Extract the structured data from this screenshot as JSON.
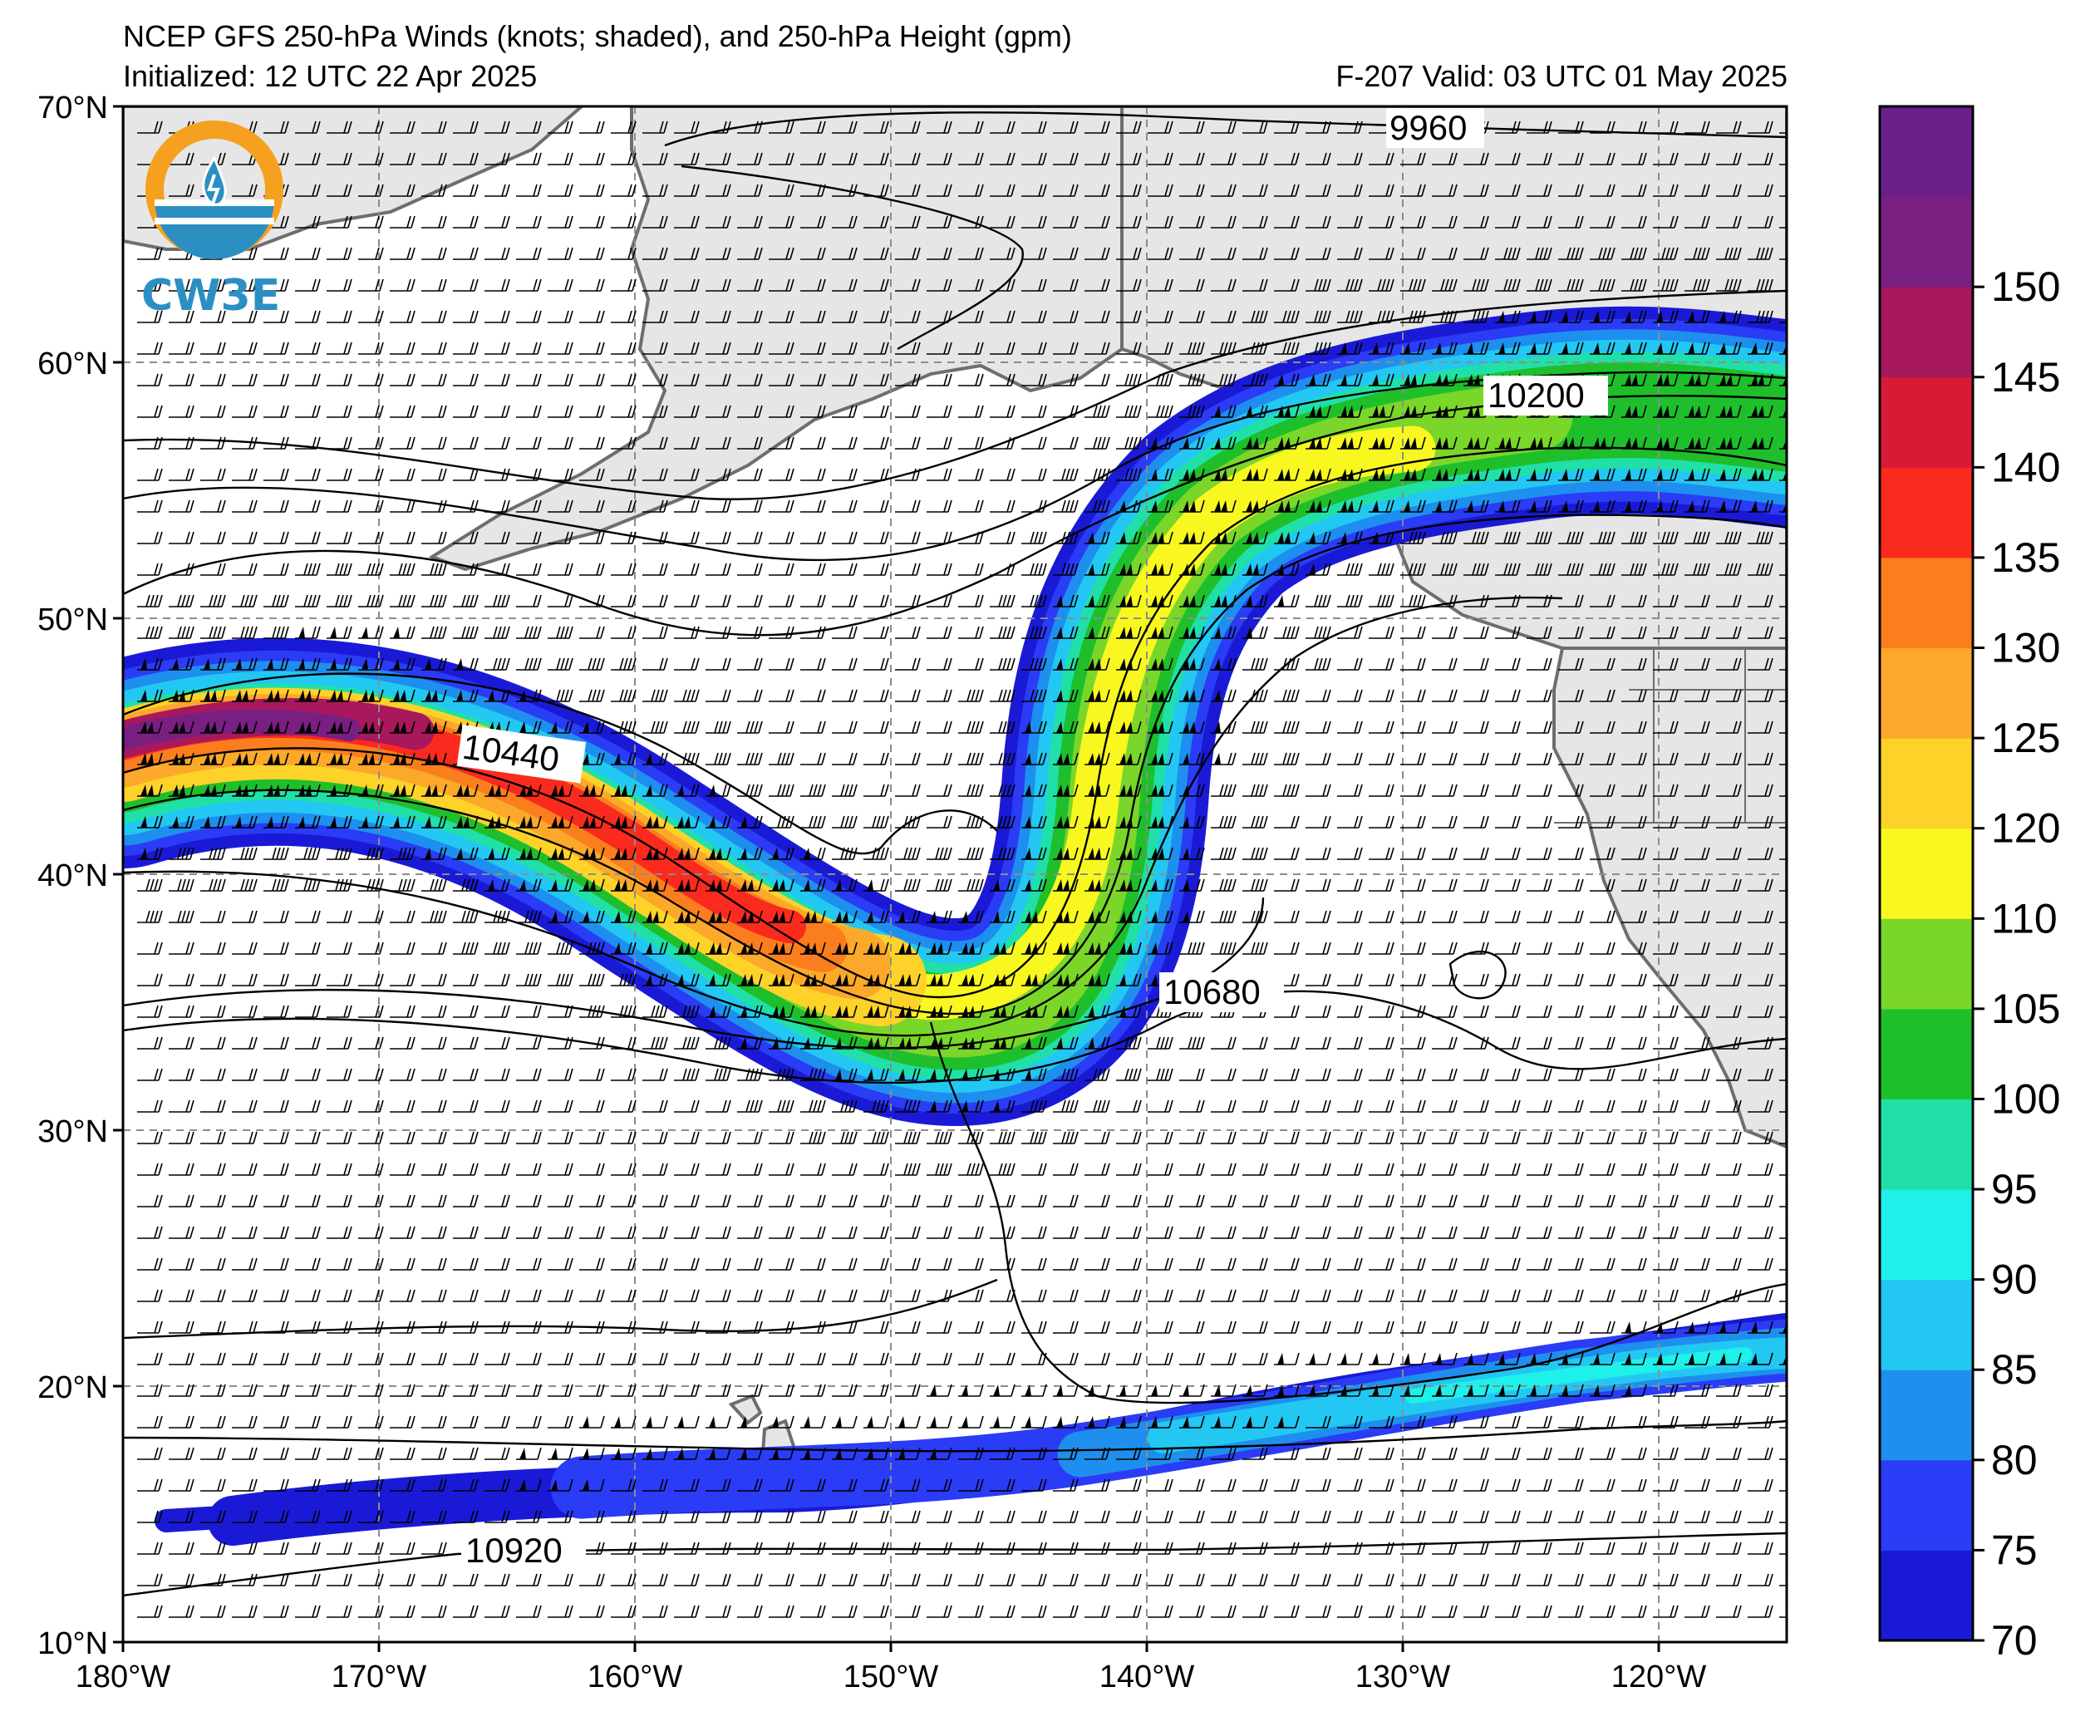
{
  "header": {
    "title": "NCEP GFS 250-hPa Winds (knots; shaded), and 250-hPa Height (gpm)",
    "initialized": "Initialized: 12 UTC 22 Apr 2025",
    "valid": "F-207  Valid: 03 UTC 01 May 2025"
  },
  "logo": {
    "text": "CW3E"
  },
  "axes": {
    "lat_labels": [
      "70°N",
      "60°N",
      "50°N",
      "40°N",
      "30°N",
      "20°N",
      "10°N"
    ],
    "lon_labels": [
      "180°W",
      "170°W",
      "160°W",
      "150°W",
      "140°W",
      "130°W",
      "120°W"
    ],
    "lat_range": [
      10,
      70
    ],
    "lon_range": [
      -180,
      -115
    ]
  },
  "height_contour_labels": [
    "9960",
    "10200",
    "10440",
    "10680",
    "10920"
  ],
  "colorbar": {
    "ticks": [
      "70",
      "75",
      "80",
      "85",
      "90",
      "95",
      "100",
      "105",
      "110",
      "120",
      "125",
      "130",
      "135",
      "140",
      "145",
      "150"
    ],
    "colors": [
      "#1a1ad6",
      "#2a3cf5",
      "#1e8fee",
      "#22c8f2",
      "#1ef0ea",
      "#20e0a8",
      "#1fbf2c",
      "#7bd62a",
      "#f8f820",
      "#fdd32a",
      "#fca82a",
      "#fb7e1e",
      "#fb2a1e",
      "#d91a36",
      "#a8185c",
      "#7a1f82",
      "#6a1f8a"
    ]
  },
  "colors": {
    "land": "#e6e6e6",
    "coast": "#6e6e6e",
    "grid": "#8c8c8c",
    "contour": "#000000"
  }
}
